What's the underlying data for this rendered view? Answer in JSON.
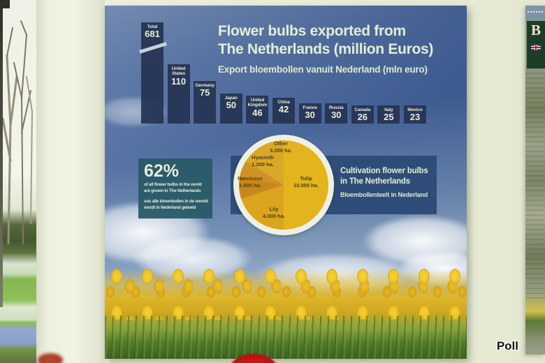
{
  "poster": {
    "title_line1": "Flower bulbs exported from",
    "title_line2": "The Netherlands (million Euros)",
    "subtitle": "Export bloembollen vanuit Nederland (mln euro)",
    "fact_box": {
      "headline": "62%",
      "en_line1": "of all flower bulbs in the world",
      "en_line2": "are grown in The Netherlands",
      "nl_line1": "van alle bloembollen in de wereld",
      "nl_line2": "wordt in Nederland geteeld"
    },
    "cultivation": {
      "title_line1": "Cultivation flower bulbs",
      "title_line2": "in The Netherlands",
      "subtitle": "Bloembollenteelt in Nederland"
    }
  },
  "chart_data": [
    {
      "type": "bar",
      "title": "Flower bulbs exported from The Netherlands (million Euros)",
      "subtitle": "Export bloembollen vanuit Nederland (mln euro)",
      "categories": [
        "Total",
        "United States",
        "Germany",
        "Japan",
        "United Kingdom",
        "China",
        "France",
        "Russia",
        "Canada",
        "Italy",
        "Mexico"
      ],
      "values": [
        681,
        110,
        75,
        50,
        46,
        42,
        30,
        30,
        26,
        25,
        23
      ],
      "unit": "million euro",
      "bar_color": "#263454",
      "label_color": "#e7efda",
      "layout_note": "Total bar truncated with diagonal axis-break mark"
    },
    {
      "type": "pie",
      "title": "Cultivation flower bulbs in The Netherlands",
      "subtitle": "Bloembollenteelt in Nederland",
      "labels": [
        "Tulip",
        "Lily",
        "Narcissus",
        "Hyacinth",
        "Other"
      ],
      "values_ha": [
        10000,
        4000,
        1600,
        1200,
        3200
      ],
      "display_values": [
        "10.000 ha.",
        "4.000 ha.",
        "1.600 ha.",
        "1.200 ha.",
        "3.200 ha."
      ],
      "colors": [
        "#e3b41e",
        "#dba41f",
        "#c8871d",
        "#cf9226",
        "#d9a82a"
      ],
      "start": "12 o'clock, clockwise",
      "ring_color": "#eef1e1"
    }
  ],
  "adjacent_poster": {
    "visible_letter": "B"
  },
  "watermark": "Poll",
  "colors": {
    "poster_sky_top": "#45649a",
    "bar_fill": "#263454",
    "fact_box_bg": "#295a68",
    "band_bg": "#2d4b76",
    "text_cream": "#e3eed6",
    "tulip_gold": "#e3b41e",
    "wall": "#e9ecd8"
  }
}
